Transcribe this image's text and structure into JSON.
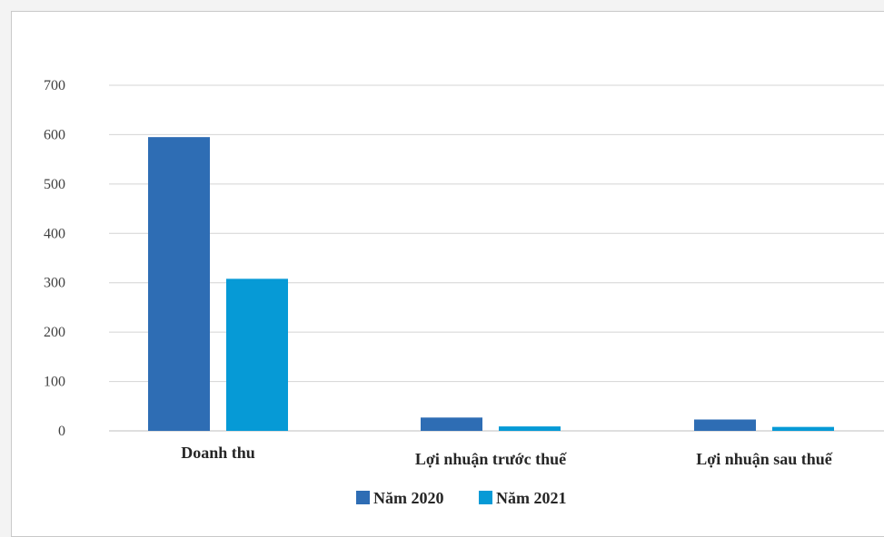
{
  "chart_data": {
    "type": "bar",
    "title": "",
    "xlabel": "",
    "ylabel": "",
    "categories": [
      "Doanh thu",
      "Lợi nhuận trước thuế",
      "Lợi nhuận sau thuế"
    ],
    "series": [
      {
        "name": "Năm 2020",
        "color": "#2e6db4",
        "values": [
          595,
          27,
          23
        ]
      },
      {
        "name": "Năm 2021",
        "color": "#069ad6",
        "values": [
          308,
          9,
          8
        ]
      }
    ],
    "ylim": [
      0,
      700
    ],
    "yticks": [
      "0",
      "100",
      "200",
      "300",
      "400",
      "500",
      "600",
      "700"
    ],
    "grid": true,
    "legend_position": "bottom"
  }
}
